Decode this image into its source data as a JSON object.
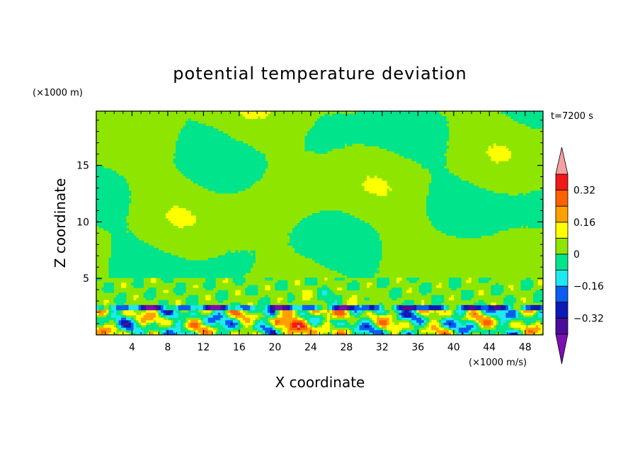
{
  "chart_data": {
    "type": "heatmap",
    "title": "potential temperature deviation",
    "xlabel": "X coordinate",
    "ylabel": "Z coordinate",
    "x_unit": "(×1000 m/s)",
    "y_unit": "(×1000 m)",
    "time_label": "t=7200 s",
    "xlim": [
      0,
      50
    ],
    "ylim": [
      0,
      19.8
    ],
    "x_ticks": [
      4,
      8,
      12,
      16,
      20,
      24,
      28,
      32,
      36,
      40,
      44,
      48
    ],
    "x_tick_labels": [
      "4",
      "8",
      "12",
      "16",
      "20",
      "24",
      "28",
      "32",
      "36",
      "40",
      "44",
      "48"
    ],
    "y_ticks": [
      5,
      10,
      15
    ],
    "y_tick_labels": [
      "5",
      "10",
      "15"
    ],
    "colorbar": {
      "levels": [
        -0.4,
        -0.32,
        -0.24,
        -0.16,
        -0.08,
        0,
        0.08,
        0.16,
        0.24,
        0.32,
        0.4
      ],
      "labeled_values": [
        0.32,
        0.16,
        0,
        -0.16,
        -0.32
      ],
      "labels": [
        "0.32",
        "0.16",
        "0",
        "−0.16",
        "−0.32"
      ],
      "colors": [
        "#7b0fb0",
        "#4b0c9c",
        "#0b1ab4",
        "#0b5cf0",
        "#1fe8f0",
        "#00e48c",
        "#8ee600",
        "#ffff00",
        "#ffa000",
        "#ff6000",
        "#f01818",
        "#f4a0a0"
      ],
      "extend": "both"
    },
    "grid": false
  }
}
